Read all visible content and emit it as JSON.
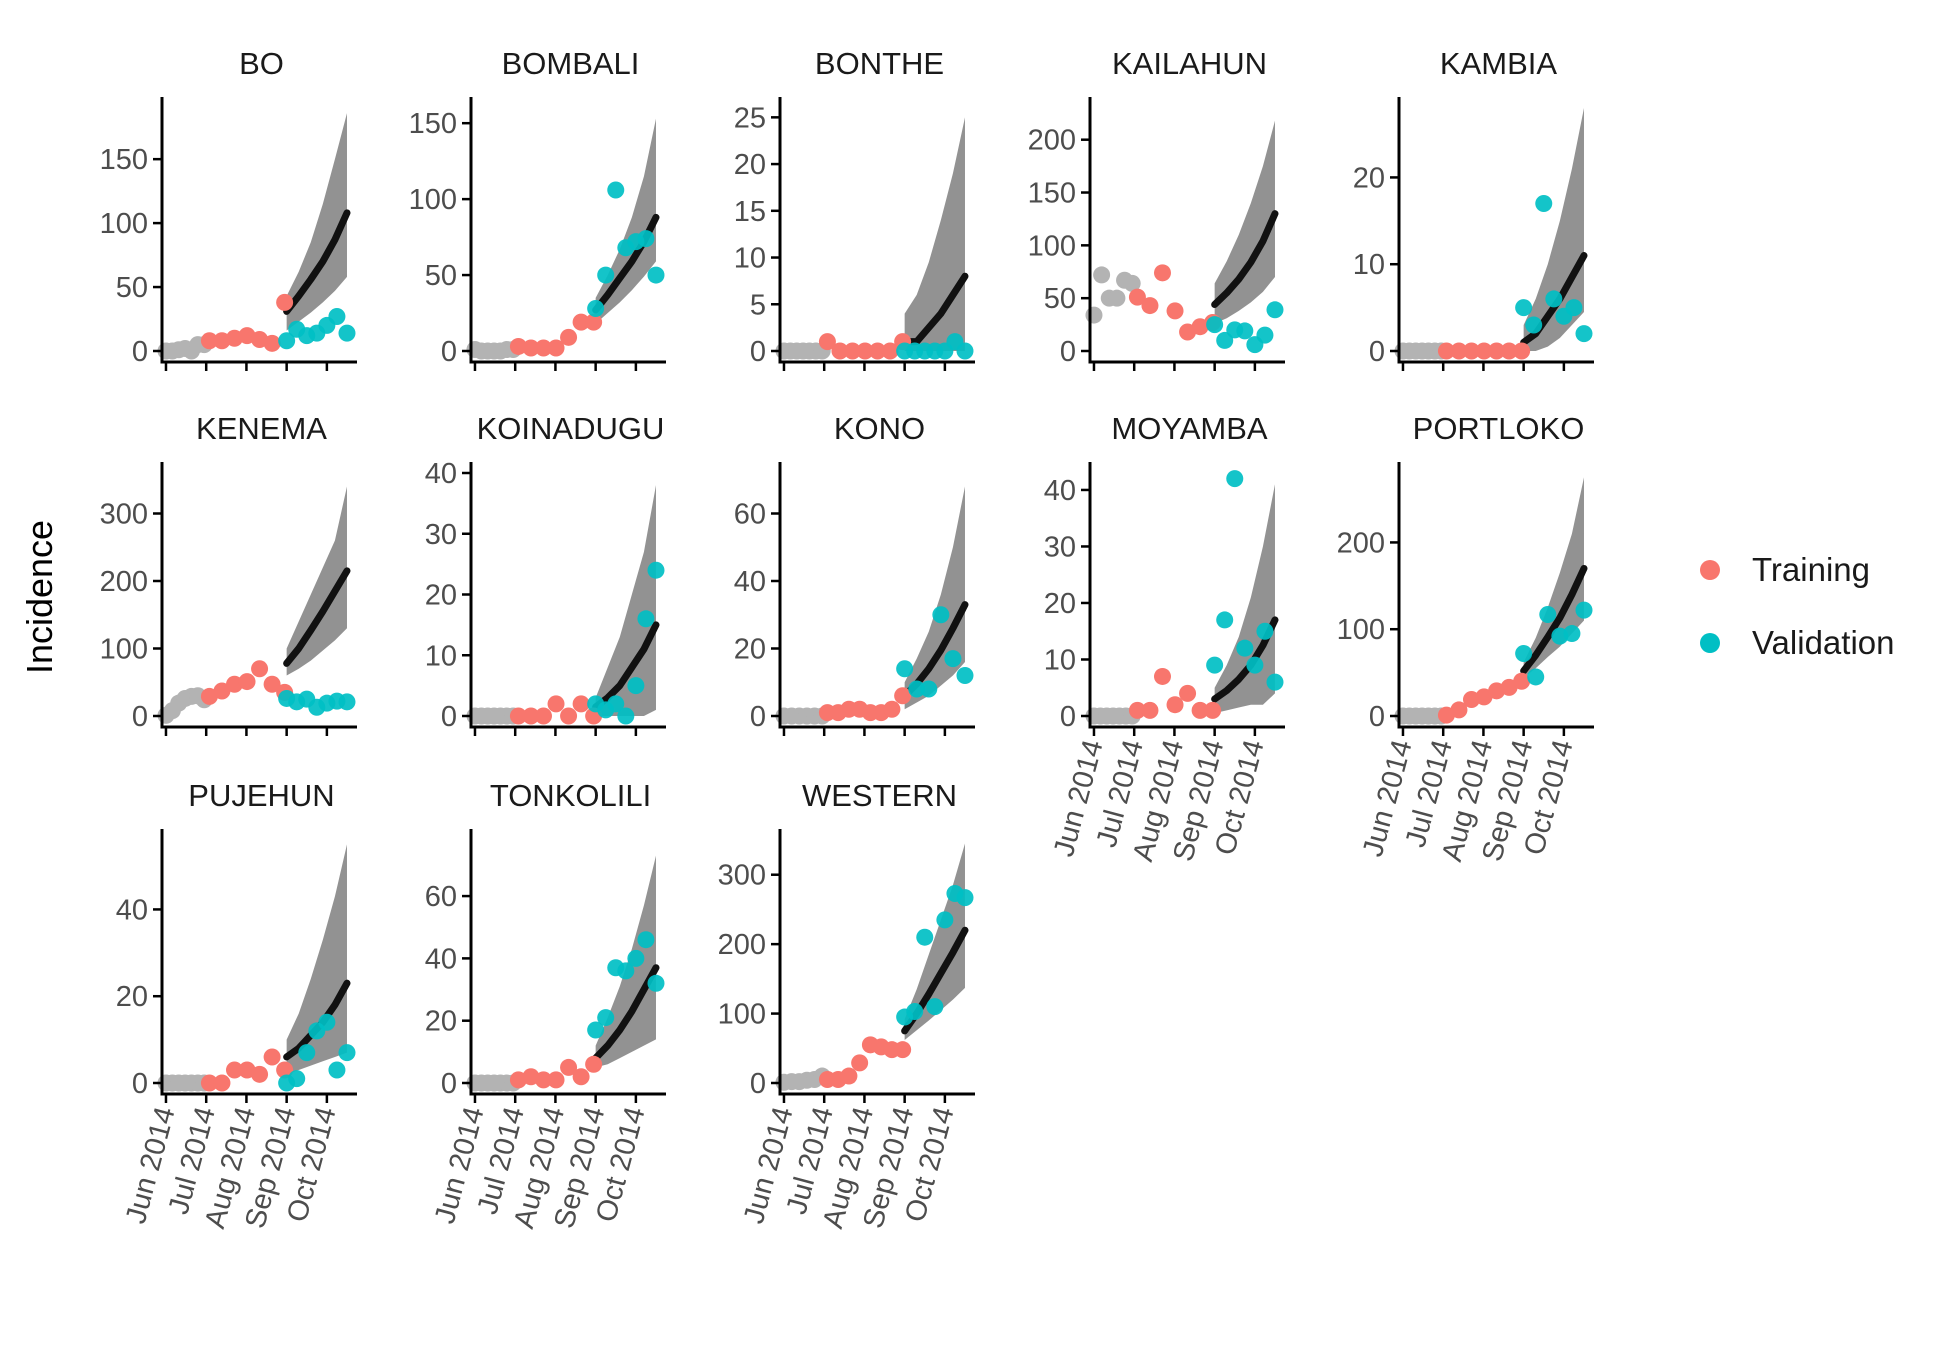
{
  "chart_data": {
    "type": "scatter",
    "ylabel": "Incidence",
    "x_tick_labels": [
      "Jun 2014",
      "Jul 2014",
      "Aug 2014",
      "Sep 2014",
      "Oct 2014"
    ],
    "legend": [
      {
        "name": "Training",
        "color": "#F8766D"
      },
      {
        "name": "Validation",
        "color": "#00BFC4"
      }
    ],
    "colors": {
      "pre": "#b3b3b3",
      "training": "#F8766D",
      "validation": "#00BFC4",
      "band": "#7f7f7f",
      "line": "#111111",
      "axis": "#000000"
    },
    "x_labels_shown_on": [
      "MOYAMBA",
      "PORTLOKO",
      "PUJEHUN",
      "TONKOLILI",
      "WESTERN"
    ],
    "panels": [
      {
        "name": "BO",
        "ylim": [
          0,
          190
        ],
        "yticks": [
          0,
          50,
          100,
          150
        ],
        "pre": [
          0,
          0,
          1,
          2,
          0,
          5,
          5
        ],
        "training": [
          8,
          8,
          10,
          12,
          9,
          6,
          38
        ],
        "validation": [
          8,
          17,
          12,
          14,
          20,
          27,
          14
        ],
        "fit": [
          31,
          43,
          56,
          70,
          87,
          108
        ],
        "lower": [
          16,
          23,
          30,
          38,
          47,
          58
        ],
        "upper": [
          43,
          62,
          85,
          115,
          150,
          186
        ]
      },
      {
        "name": "BOMBALI",
        "ylim": [
          0,
          160
        ],
        "yticks": [
          0,
          50,
          100,
          150
        ],
        "pre": [
          1,
          0,
          0,
          0,
          0,
          1,
          1
        ],
        "training": [
          3,
          2,
          2,
          2,
          9,
          19,
          19
        ],
        "validation": [
          28,
          50,
          106,
          68,
          72,
          74,
          50
        ],
        "fit": [
          27,
          37,
          48,
          59,
          72,
          88
        ],
        "lower": [
          18,
          25,
          32,
          40,
          49,
          59
        ],
        "upper": [
          35,
          50,
          67,
          88,
          115,
          153
        ]
      },
      {
        "name": "BONTHE",
        "ylim": [
          0,
          26
        ],
        "yticks": [
          0,
          5,
          10,
          15,
          20,
          25
        ],
        "pre": [
          0,
          0,
          0,
          0,
          0,
          0,
          0
        ],
        "training": [
          1,
          0,
          0,
          0,
          0,
          0,
          1
        ],
        "validation": [
          0,
          0,
          0,
          0,
          0,
          1,
          0
        ],
        "fit": [
          1,
          1,
          2.5,
          4,
          6,
          8
        ],
        "lower": [
          0,
          0,
          0,
          0,
          0,
          0
        ],
        "upper": [
          4,
          6,
          9.5,
          14,
          19,
          25
        ]
      },
      {
        "name": "KAILAHUN",
        "ylim": [
          0,
          230
        ],
        "yticks": [
          0,
          50,
          100,
          150,
          200
        ],
        "pre": [
          34,
          72,
          50,
          50,
          67,
          64
        ],
        "training": [
          51,
          43,
          74,
          38,
          18,
          23,
          27
        ],
        "validation": [
          25,
          10,
          20,
          19,
          6,
          15,
          39
        ],
        "fit": [
          44,
          55,
          68,
          84,
          104,
          130
        ],
        "lower": [
          26,
          31,
          38,
          46,
          56,
          70
        ],
        "upper": [
          64,
          85,
          110,
          140,
          175,
          218
        ]
      },
      {
        "name": "KAMBIA",
        "ylim": [
          0,
          28
        ],
        "yticks": [
          0,
          10,
          20
        ],
        "pre": [
          0,
          0,
          0,
          0,
          0,
          0,
          0
        ],
        "training": [
          0,
          0,
          0,
          0,
          0,
          0,
          0
        ],
        "validation": [
          5,
          3,
          17,
          6,
          4,
          5,
          2
        ],
        "fit": [
          1,
          2,
          4,
          6,
          8.5,
          11
        ],
        "lower": [
          0,
          0,
          0.5,
          1.5,
          3,
          4.5
        ],
        "upper": [
          3,
          6,
          10,
          15,
          21,
          28
        ]
      },
      {
        "name": "KENEMA",
        "ylim": [
          0,
          360
        ],
        "yticks": [
          0,
          100,
          200,
          300
        ],
        "pre": [
          1,
          8,
          19,
          26,
          29,
          30,
          24
        ],
        "training": [
          29,
          37,
          47,
          51,
          70,
          47,
          35
        ],
        "validation": [
          26,
          21,
          25,
          13,
          19,
          22,
          21
        ],
        "fit": [
          78,
          100,
          127,
          155,
          185,
          215
        ],
        "lower": [
          60,
          70,
          82,
          97,
          112,
          130
        ],
        "upper": [
          100,
          140,
          180,
          220,
          260,
          340
        ]
      },
      {
        "name": "KOINADUGU",
        "ylim": [
          0,
          40
        ],
        "yticks": [
          0,
          10,
          20,
          30,
          40
        ],
        "pre": [
          0,
          0,
          0,
          0,
          0,
          0,
          0
        ],
        "training": [
          0,
          0,
          0,
          2,
          0,
          2,
          0
        ],
        "validation": [
          2,
          1,
          2,
          0,
          5,
          16,
          24
        ],
        "fit": [
          1.5,
          3,
          5,
          8,
          11,
          15
        ],
        "lower": [
          0,
          0,
          0,
          0,
          0,
          1
        ],
        "upper": [
          3,
          8,
          13,
          20,
          27,
          38
        ]
      },
      {
        "name": "KONO",
        "ylim": [
          0,
          72
        ],
        "yticks": [
          0,
          20,
          40,
          60
        ],
        "pre": [
          0,
          0,
          0,
          0,
          0,
          0
        ],
        "training": [
          1,
          1,
          2,
          2,
          1,
          1,
          2,
          6
        ],
        "validation": [
          14,
          8,
          8,
          30,
          17,
          12
        ],
        "fit": [
          6,
          9.5,
          14,
          19.5,
          26,
          33
        ],
        "lower": [
          2,
          4,
          6,
          9,
          12,
          16
        ],
        "upper": [
          10,
          17,
          25,
          36,
          50,
          68
        ]
      },
      {
        "name": "MOYAMBA",
        "ylim": [
          0,
          43
        ],
        "yticks": [
          0,
          10,
          20,
          30,
          40
        ],
        "pre": [
          0,
          0,
          0,
          0,
          0,
          0,
          0
        ],
        "training": [
          1,
          1,
          7,
          2,
          4,
          1,
          1
        ],
        "validation": [
          9,
          17,
          42,
          12,
          9,
          15,
          6
        ],
        "fit": [
          3,
          4.5,
          6.5,
          9,
          12.5,
          17
        ],
        "lower": [
          0.5,
          1,
          1.5,
          2,
          2,
          4
        ],
        "upper": [
          5,
          9,
          14,
          21,
          30,
          41
        ]
      },
      {
        "name": "PORTLOKO",
        "ylim": [
          0,
          280
        ],
        "yticks": [
          0,
          100,
          200
        ],
        "pre": [
          0,
          0,
          0,
          0,
          0,
          0,
          0
        ],
        "training": [
          1,
          7,
          19,
          22,
          29,
          33,
          40
        ],
        "validation": [
          72,
          45,
          117,
          92,
          95,
          122
        ],
        "fit": [
          52,
          70,
          91,
          113,
          140,
          170
        ],
        "lower": [
          44,
          55,
          68,
          80,
          95,
          110
        ],
        "upper": [
          62,
          90,
          125,
          165,
          210,
          275
        ]
      },
      {
        "name": "PUJEHUN",
        "ylim": [
          0,
          56
        ],
        "yticks": [
          0,
          20,
          40
        ],
        "pre": [
          0,
          0,
          0,
          0,
          0,
          0,
          0
        ],
        "training": [
          0,
          0,
          3,
          3,
          2,
          6,
          3
        ],
        "validation": [
          0,
          1,
          7,
          12,
          14,
          3,
          7
        ],
        "fit": [
          6,
          8,
          11,
          14,
          18,
          23
        ],
        "lower": [
          2,
          3,
          4,
          5,
          6,
          7
        ],
        "upper": [
          10,
          16,
          24,
          33,
          43,
          55
        ]
      },
      {
        "name": "TONKOLILI",
        "ylim": [
          0,
          78
        ],
        "yticks": [
          0,
          20,
          40,
          60
        ],
        "pre": [
          0,
          0,
          0,
          0,
          0,
          0,
          0
        ],
        "training": [
          1,
          2,
          1,
          1,
          5,
          2,
          6
        ],
        "validation": [
          17,
          21,
          37,
          36,
          40,
          46,
          32
        ],
        "fit": [
          8,
          12,
          17,
          23,
          30,
          37
        ],
        "lower": [
          5,
          6,
          8,
          10,
          12,
          14
        ],
        "upper": [
          12,
          21,
          31,
          43,
          57,
          73
        ]
      },
      {
        "name": "WESTERN",
        "ylim": [
          0,
          350
        ],
        "yticks": [
          0,
          100,
          200,
          300
        ],
        "pre": [
          1,
          2,
          2,
          4,
          5,
          10
        ],
        "training": [
          5,
          5,
          10,
          29,
          55,
          52,
          48,
          48
        ],
        "validation": [
          95,
          103,
          210,
          110,
          235,
          273,
          267
        ],
        "fit": [
          75,
          100,
          128,
          158,
          188,
          220
        ],
        "lower": [
          62,
          76,
          90,
          105,
          120,
          137
        ],
        "upper": [
          92,
          135,
          185,
          235,
          285,
          345
        ]
      }
    ]
  }
}
